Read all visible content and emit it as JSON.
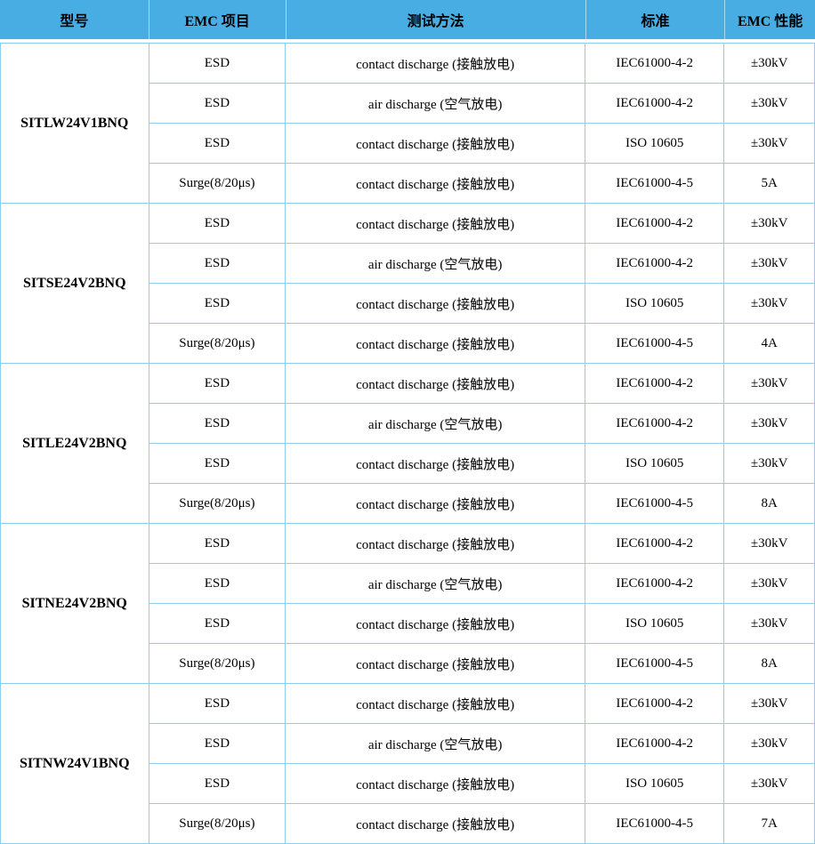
{
  "colors": {
    "header_bg": "#48ade2",
    "header_separator": "#a8daf0",
    "cell_border": "#8fcdef",
    "text": "#000000"
  },
  "header": {
    "columns": {
      "model": "型号",
      "emc_item": "EMC 项目",
      "test_method": "测试方法",
      "standard": "标准",
      "emc_performance": "EMC 性能"
    }
  },
  "groups": [
    {
      "model": "SITLW24V1BNQ",
      "rows": [
        {
          "item": "ESD",
          "method": "contact discharge (接触放电)",
          "standard": "IEC61000-4-2",
          "performance": "±30kV"
        },
        {
          "item": "ESD",
          "method": "air discharge (空气放电)",
          "standard": "IEC61000-4-2",
          "performance": "±30kV"
        },
        {
          "item": "ESD",
          "method": "contact discharge (接触放电)",
          "standard": "ISO 10605",
          "performance": "±30kV"
        },
        {
          "item": "Surge(8/20μs)",
          "method": "contact discharge (接触放电)",
          "standard": "IEC61000-4-5",
          "performance": "5A"
        }
      ]
    },
    {
      "model": "SITSE24V2BNQ",
      "rows": [
        {
          "item": "ESD",
          "method": "contact discharge (接触放电)",
          "standard": "IEC61000-4-2",
          "performance": "±30kV"
        },
        {
          "item": "ESD",
          "method": "air discharge (空气放电)",
          "standard": "IEC61000-4-2",
          "performance": "±30kV"
        },
        {
          "item": "ESD",
          "method": "contact discharge (接触放电)",
          "standard": "ISO 10605",
          "performance": "±30kV"
        },
        {
          "item": "Surge(8/20μs)",
          "method": "contact discharge (接触放电)",
          "standard": "IEC61000-4-5",
          "performance": "4A"
        }
      ]
    },
    {
      "model": "SITLE24V2BNQ",
      "rows": [
        {
          "item": "ESD",
          "method": "contact discharge (接触放电)",
          "standard": "IEC61000-4-2",
          "performance": "±30kV"
        },
        {
          "item": "ESD",
          "method": "air discharge (空气放电)",
          "standard": "IEC61000-4-2",
          "performance": "±30kV"
        },
        {
          "item": "ESD",
          "method": "contact discharge (接触放电)",
          "standard": "ISO 10605",
          "performance": "±30kV"
        },
        {
          "item": "Surge(8/20μs)",
          "method": "contact discharge (接触放电)",
          "standard": "IEC61000-4-5",
          "performance": "8A"
        }
      ]
    },
    {
      "model": "SITNE24V2BNQ",
      "rows": [
        {
          "item": "ESD",
          "method": "contact discharge (接触放电)",
          "standard": "IEC61000-4-2",
          "performance": "±30kV"
        },
        {
          "item": "ESD",
          "method": "air discharge (空气放电)",
          "standard": "IEC61000-4-2",
          "performance": "±30kV"
        },
        {
          "item": "ESD",
          "method": "contact discharge (接触放电)",
          "standard": "ISO 10605",
          "performance": "±30kV"
        },
        {
          "item": "Surge(8/20μs)",
          "method": "contact discharge (接触放电)",
          "standard": "IEC61000-4-5",
          "performance": "8A"
        }
      ]
    },
    {
      "model": "SITNW24V1BNQ",
      "rows": [
        {
          "item": "ESD",
          "method": "contact discharge (接触放电)",
          "standard": "IEC61000-4-2",
          "performance": "±30kV"
        },
        {
          "item": "ESD",
          "method": "air discharge (空气放电)",
          "standard": "IEC61000-4-2",
          "performance": "±30kV"
        },
        {
          "item": "ESD",
          "method": "contact discharge (接触放电)",
          "standard": "ISO 10605",
          "performance": "±30kV"
        },
        {
          "item": "Surge(8/20μs)",
          "method": "contact discharge (接触放电)",
          "standard": "IEC61000-4-5",
          "performance": "7A"
        }
      ]
    }
  ]
}
